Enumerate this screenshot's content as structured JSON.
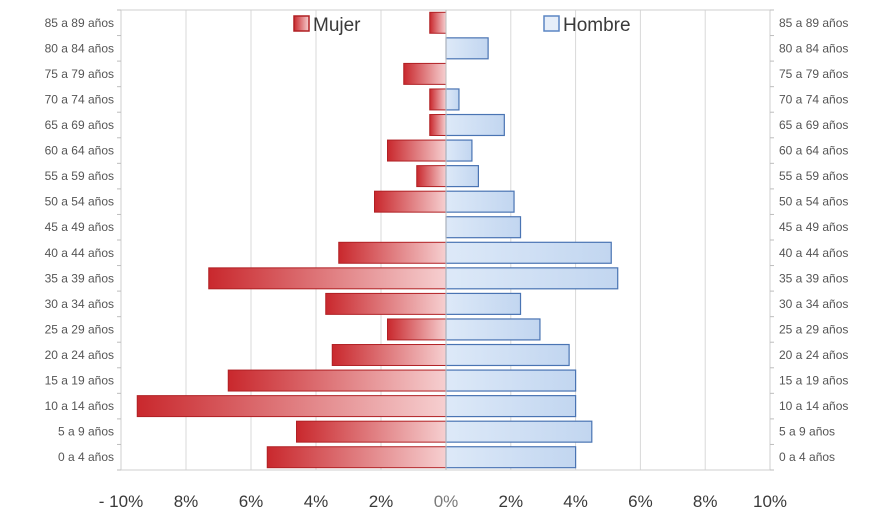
{
  "chart_data": {
    "type": "bar",
    "orientation": "horizontal-population-pyramid",
    "categories": [
      "0 a 4 años",
      "5 a 9 años",
      "10 a 14 años",
      "15 a 19 años",
      "20 a 24 años",
      "25 a 29 años",
      "30 a 34 años",
      "35 a 39 años",
      "40 a 44 años",
      "45 a 49 años",
      "50 a 54 años",
      "55 a 59 años",
      "60 a 64 años",
      "65 a 69 años",
      "70 a 74 años",
      "75 a 79 años",
      "80 a 84 años",
      "85 a 89 años"
    ],
    "series": [
      {
        "name": "Mujer",
        "color": "#c9282d",
        "light_color": "#f6cfd0",
        "values": [
          5.5,
          4.6,
          9.5,
          6.7,
          3.5,
          1.8,
          3.7,
          7.3,
          3.3,
          0.0,
          2.2,
          0.9,
          1.8,
          0.5,
          0.5,
          1.3,
          0.0,
          0.5
        ]
      },
      {
        "name": "Hombre",
        "color": "#5b86c4",
        "light_color": "#dde9f8",
        "values": [
          4.0,
          4.5,
          4.0,
          4.0,
          3.8,
          2.9,
          2.3,
          5.3,
          5.1,
          2.3,
          2.1,
          1.0,
          0.8,
          1.8,
          0.4,
          0.0,
          1.3,
          0.0
        ]
      }
    ],
    "xlim": [
      -10,
      10
    ],
    "x_ticks": [
      -10,
      -8,
      -6,
      -4,
      -2,
      0,
      2,
      4,
      6,
      8,
      10
    ],
    "x_tick_labels": [
      "- 10%",
      "8%",
      "6%",
      "4%",
      "2%",
      "0%",
      "2%",
      "4%",
      "6%",
      "8%",
      "10%"
    ],
    "grid": true,
    "legend_position": "top"
  }
}
